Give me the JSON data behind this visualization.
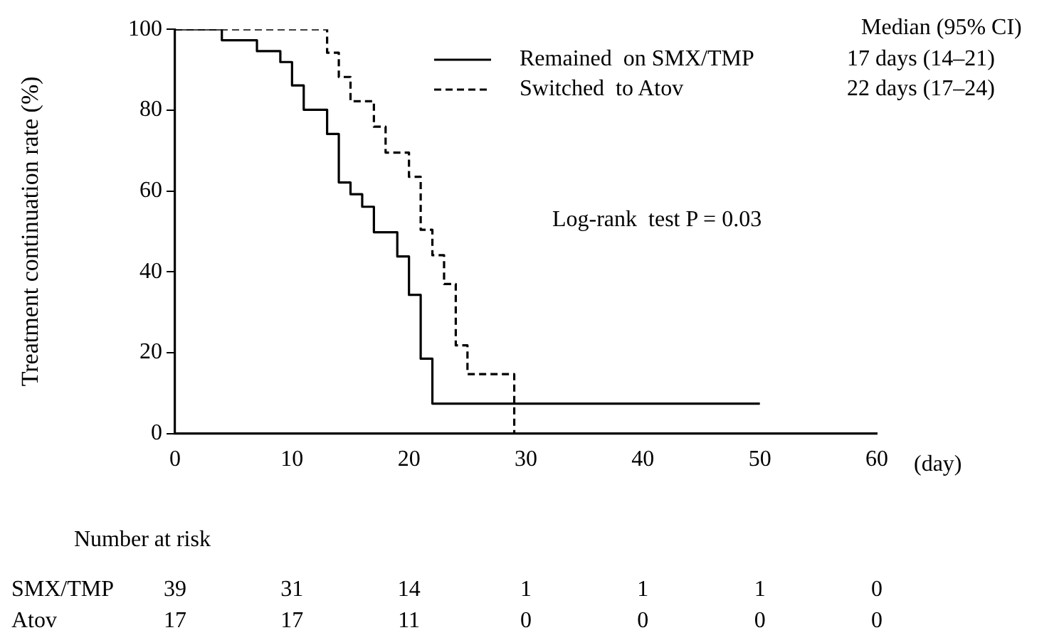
{
  "chart_data": {
    "type": "step",
    "xlabel": "(day)",
    "ylabel": "Treatment continuation rate (%)",
    "xlim": [
      0,
      60
    ],
    "xticks": [
      0,
      10,
      20,
      30,
      40,
      50,
      60
    ],
    "ylim": [
      0,
      100
    ],
    "yticks": [
      0,
      20,
      40,
      60,
      80,
      100
    ],
    "grid": false,
    "legend": "top right",
    "marker": "none",
    "series": [
      {
        "name": "Remained  on SMX/TMP",
        "color": "#000000",
        "line_style": "solid",
        "x": [
          0,
          4,
          7,
          9,
          10,
          11,
          13,
          14,
          15,
          16,
          17,
          19,
          20,
          21,
          22,
          50
        ],
        "values": [
          100,
          97.3,
          94.6,
          91.9,
          86.1,
          80.1,
          74.1,
          62.1,
          59.2,
          56.1,
          49.8,
          43.8,
          34.3,
          18.5,
          7.4,
          7.4
        ]
      },
      {
        "name": "Switched  to Atov",
        "color": "#000000",
        "line_style": "dashed",
        "x": [
          0,
          13,
          14,
          15,
          17,
          18,
          20,
          21,
          22,
          23,
          24,
          25,
          29
        ],
        "values": [
          100,
          94.2,
          88.2,
          82.2,
          75.9,
          69.5,
          63.5,
          50.4,
          44.1,
          37.0,
          21.8,
          14.7,
          0
        ]
      }
    ],
    "annotations": [
      "Median (95% CI)",
      "17 days (14–21)",
      "22 days (17–24)",
      "Log-rank  test P = 0.03",
      "Number at risk",
      "SMX/TMP  39  31  14  1  1  1  0",
      "Atov  17  17  11  0  0  0  0"
    ]
  }
}
